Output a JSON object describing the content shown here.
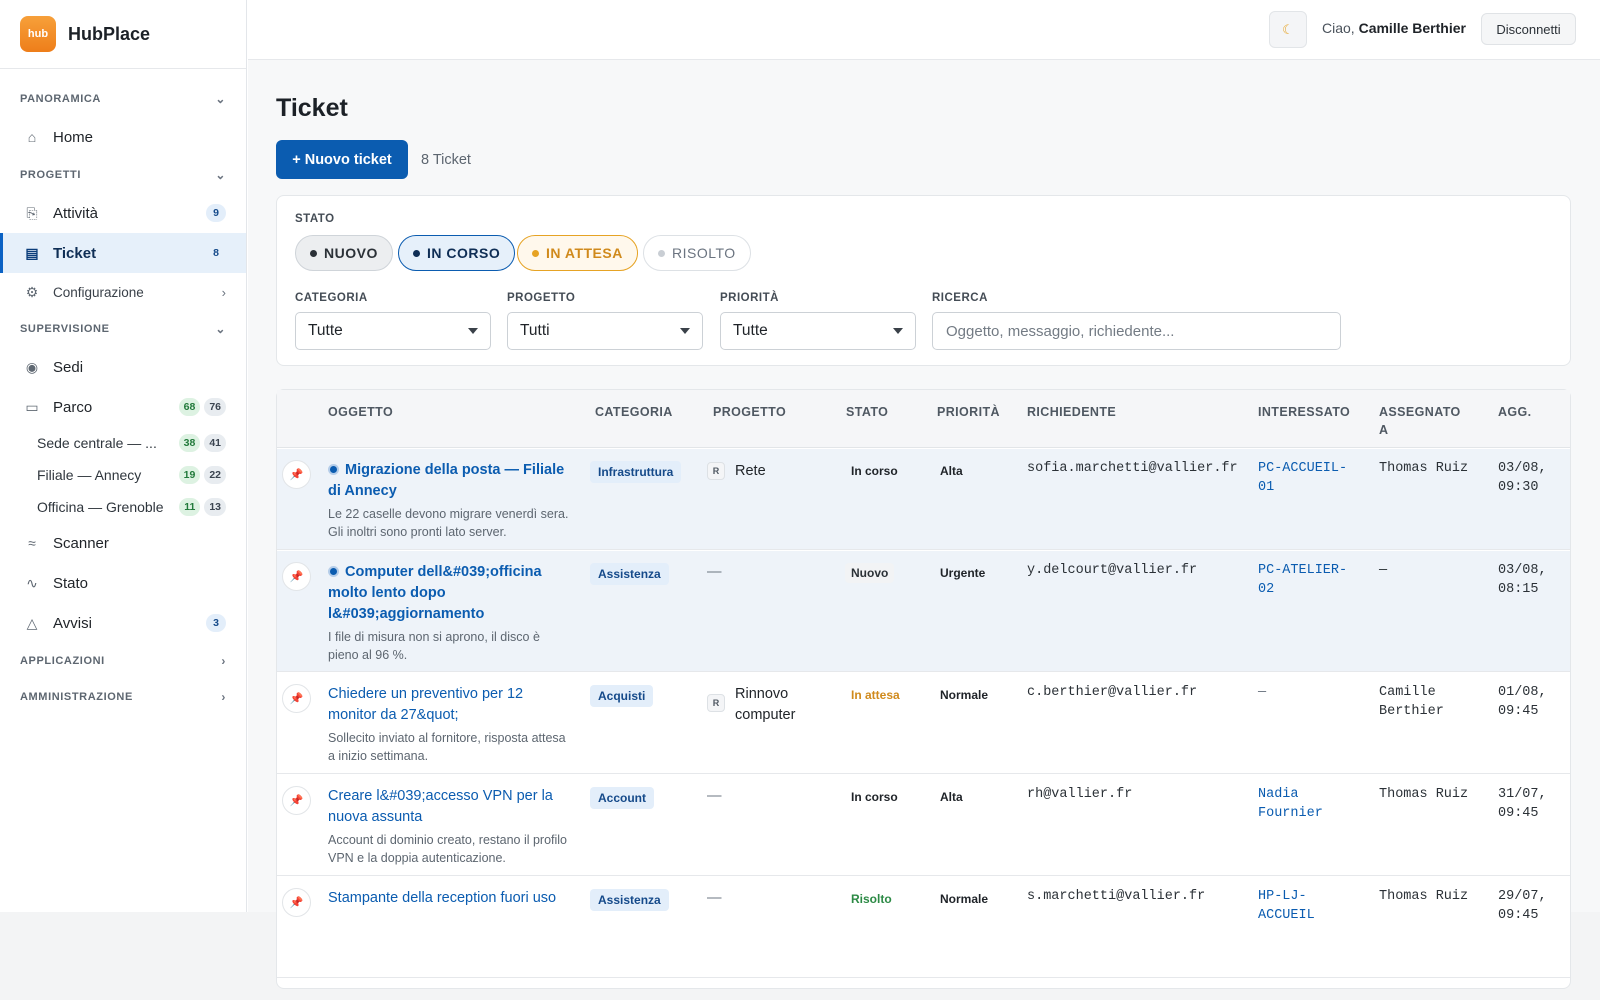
{
  "brand": {
    "logo_text": "hub",
    "name": "HubPlace"
  },
  "sidebar": {
    "panoramica_label": "PANORAMICA",
    "home_label": "Home",
    "progetti_label": "PROGETTI",
    "attivita_label": "Attività",
    "attivita_count": "9",
    "ticket_label": "Ticket",
    "ticket_count": "8",
    "configurazione_label": "Configurazione",
    "supervisione_label": "SUPERVISIONE",
    "sedi_label": "Sedi",
    "parco_label": "Parco",
    "parco_count_a": "68",
    "parco_count_b": "76",
    "sites": [
      {
        "label": "Sede centrale — ...",
        "a": "38",
        "b": "41"
      },
      {
        "label": "Filiale — Annecy",
        "a": "19",
        "b": "22"
      },
      {
        "label": "Officina — Grenoble",
        "a": "11",
        "b": "13"
      }
    ],
    "scanner_label": "Scanner",
    "stato_label": "Stato",
    "avvisi_label": "Avvisi",
    "avvisi_count": "3",
    "applicazioni_label": "APPLICAZIONI",
    "amministrazione_label": "AMMINISTRAZIONE"
  },
  "topbar": {
    "theme_icon": "moon-icon",
    "greeting": "Ciao,",
    "user_name": "Camille Berthier",
    "logout_label": "Disconnetti"
  },
  "page": {
    "title": "Ticket",
    "new_button": "+ Nuovo ticket",
    "count": "8 Ticket"
  },
  "filters": {
    "stato_label": "STATO",
    "chips": [
      "NUOVO",
      "IN CORSO",
      "IN ATTESA",
      "RISOLTO"
    ],
    "categoria_label": "CATEGORIA",
    "categoria_value": "Tutte",
    "progetto_label": "PROGETTO",
    "progetto_value": "Tutti",
    "priorita_label": "PRIORITÀ",
    "priorita_value": "Tutte",
    "ricerca_label": "RICERCA",
    "ricerca_placeholder": "Oggetto, messaggio, richiedente..."
  },
  "table": {
    "columns": [
      "OGGETTO",
      "CATEGORIA",
      "PROGETTO",
      "STATO",
      "PRIORITÀ",
      "RICHIEDENTE",
      "INTERESSATO",
      "ASSEGNATO A",
      "AGG."
    ],
    "rows": [
      {
        "title": "Migrazione della posta — Filiale di Annecy",
        "desc": "Le 22 caselle devono migrare venerdì sera. Gli inoltri sono pronti lato server.",
        "category": "Infrastruttura",
        "project_tag": "R",
        "project": "Rete",
        "status": "In corso",
        "priority": "Alta",
        "requester": "sofia.marchetti@vallier.fr",
        "interested": "PC-ACCUEIL-01",
        "assignee": "Thomas Ruiz",
        "updated": "03/08, 09:30"
      },
      {
        "title": "Computer dell&#039;officina molto lento dopo l&#039;aggiornamento",
        "desc": "I file di misura non si aprono, il disco è pieno al 96 %.",
        "category": "Assistenza",
        "project_tag": "",
        "project": "—",
        "status": "Nuovo",
        "priority": "Urgente",
        "requester": "y.delcourt@vallier.fr",
        "interested": "PC-ATELIER-02",
        "assignee": "—",
        "updated": "03/08, 08:15"
      },
      {
        "title": "Chiedere un preventivo per 12 monitor da 27&quot;",
        "desc": "Sollecito inviato al fornitore, risposta attesa a inizio settimana.",
        "category": "Acquisti",
        "project_tag": "R",
        "project": "Rinnovo computer",
        "status": "In attesa",
        "priority": "Normale",
        "requester": "c.berthier@vallier.fr",
        "interested": "—",
        "assignee": "Camille Berthier",
        "updated": "01/08, 09:45"
      },
      {
        "title": "Creare l&#039;accesso VPN per la nuova assunta",
        "desc": "Account di dominio creato, restano il profilo VPN e la doppia autenticazione.",
        "category": "Account",
        "project_tag": "",
        "project": "—",
        "status": "In corso",
        "priority": "Alta",
        "requester": "rh@vallier.fr",
        "interested": "Nadia Fournier",
        "assignee": "Thomas Ruiz",
        "updated": "31/07, 09:45"
      },
      {
        "title": "Stampante della reception fuori uso",
        "desc": "",
        "category": "Assistenza",
        "project_tag": "",
        "project": "—",
        "status": "Risolto",
        "priority": "Normale",
        "requester": "s.marchetti@vallier.fr",
        "interested": "HP-LJ-ACCUEIL",
        "assignee": "Thomas Ruiz",
        "updated": "29/07, 09:45"
      }
    ]
  },
  "colors": {
    "accent": "#0b5cb0",
    "status_new": "#2b3137",
    "status_in_progress": "#0f2e55",
    "status_waiting": "#d08a1c",
    "status_resolved": "#2c8a45"
  }
}
